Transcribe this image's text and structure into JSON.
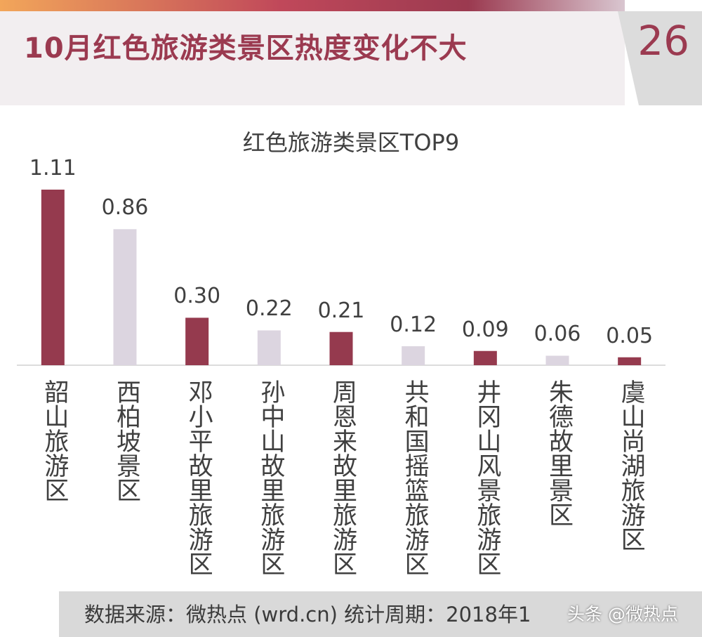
{
  "header": {
    "title": "10月红色旅游类景区热度变化不大",
    "page_number": "26"
  },
  "colors": {
    "accent": "#9b3a50",
    "bar_dark": "#953a4e",
    "bar_light": "#dcd5e0",
    "footer_bg": "#d9d9d9"
  },
  "chart_data": {
    "type": "bar",
    "title": "红色旅游类景区TOP9",
    "categories": [
      "韶山旅游区",
      "西柏坡景区",
      "邓小平故里旅游区",
      "孙中山故里旅游区",
      "周恩来故里旅游区",
      "共和国摇篮旅游区",
      "井冈山风景旅游区",
      "朱德故里景区",
      "虞山尚湖旅游区"
    ],
    "values": [
      1.11,
      0.86,
      0.3,
      0.22,
      0.21,
      0.12,
      0.09,
      0.06,
      0.05
    ],
    "value_labels": [
      "1.11",
      "0.86",
      "0.30",
      "0.22",
      "0.21",
      "0.12",
      "0.09",
      "0.06",
      "0.05"
    ],
    "bar_color_pattern": [
      "dark",
      "light",
      "dark",
      "light",
      "dark",
      "light",
      "dark",
      "light",
      "dark"
    ],
    "xlabel": "",
    "ylabel": "",
    "ylim": [
      0,
      1.11
    ],
    "grid": false,
    "legend": "none"
  },
  "footer": {
    "source_text": "数据来源：微热点 (wrd.cn)    统计周期：2018年1",
    "watermark": "头条 @微热点"
  }
}
